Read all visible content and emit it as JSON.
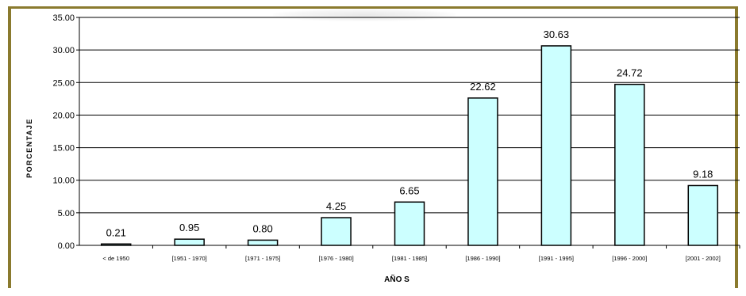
{
  "chart_data": {
    "type": "bar",
    "title": "",
    "xlabel": "AÑO S",
    "ylabel": "PORCENTAJE",
    "ylim": [
      0,
      35
    ],
    "yticks": [
      "0.00",
      "5.00",
      "10.00",
      "15.00",
      "20.00",
      "25.00",
      "30.00",
      "35.00"
    ],
    "grid": true,
    "legend": "none",
    "bar_color": "#ccffff",
    "bar_stroke": "#000000",
    "categories": [
      "< de 1950",
      "[1951 - 1970]",
      "[1971 - 1975]",
      "[1976 - 1980]",
      "[1981 - 1985]",
      "[1986 - 1990]",
      "[1991 - 1995]",
      "[1996 - 2000]",
      "[2001 - 2002]"
    ],
    "values": [
      0.21,
      0.95,
      0.8,
      4.25,
      6.65,
      22.62,
      30.63,
      24.72,
      9.18
    ],
    "value_labels": [
      "0.21",
      "0.95",
      "0.80",
      "4.25",
      "6.65",
      "22.62",
      "30.63",
      "24.72",
      "9.18"
    ]
  }
}
